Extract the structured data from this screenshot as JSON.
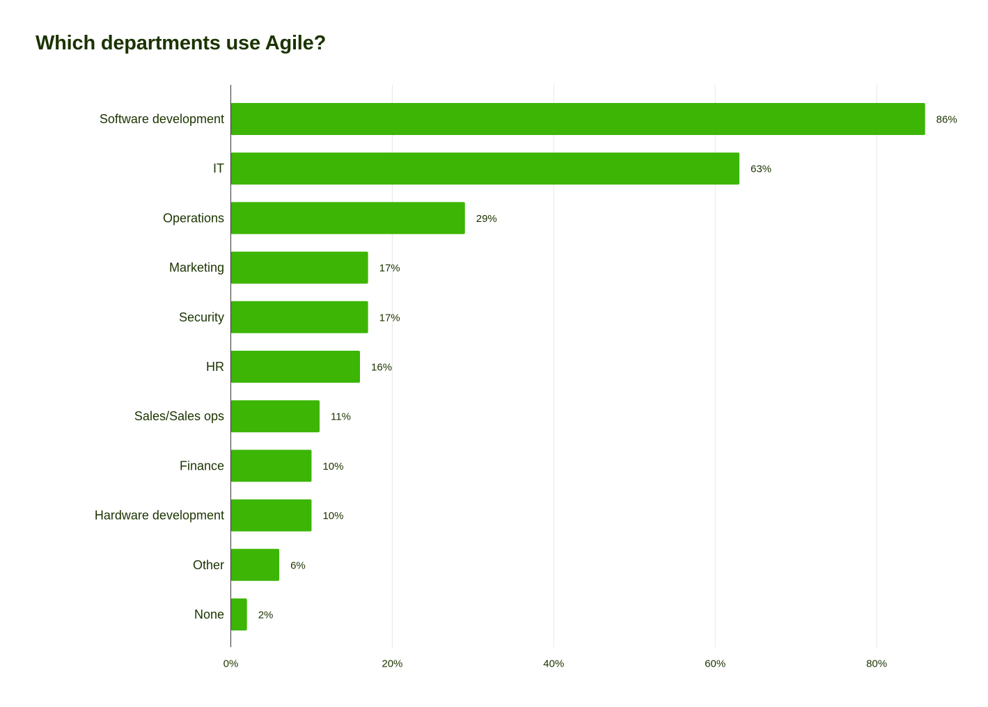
{
  "chart_data": {
    "type": "bar",
    "orientation": "horizontal",
    "title": "Which departments use Agile?",
    "categories": [
      "Software development",
      "IT",
      "Operations",
      "Marketing",
      "Security",
      "HR",
      "Sales/Sales ops",
      "Finance",
      "Hardware development",
      "Other",
      "None"
    ],
    "values": [
      86,
      63,
      29,
      17,
      17,
      16,
      11,
      10,
      10,
      6,
      2
    ],
    "value_labels": [
      "86%",
      "63%",
      "29%",
      "17%",
      "17%",
      "16%",
      "11%",
      "10%",
      "10%",
      "6%",
      "2%"
    ],
    "xlim": [
      0,
      90
    ],
    "x_ticks": [
      0,
      20,
      40,
      60,
      80
    ],
    "x_tick_labels": [
      "0%",
      "20%",
      "40%",
      "60%",
      "80%"
    ],
    "grid": true,
    "legend": "none",
    "colors": {
      "bar": "#3cb505",
      "text": "#1b3300",
      "grid": "#e6e6e6",
      "axis": "#333333"
    }
  }
}
